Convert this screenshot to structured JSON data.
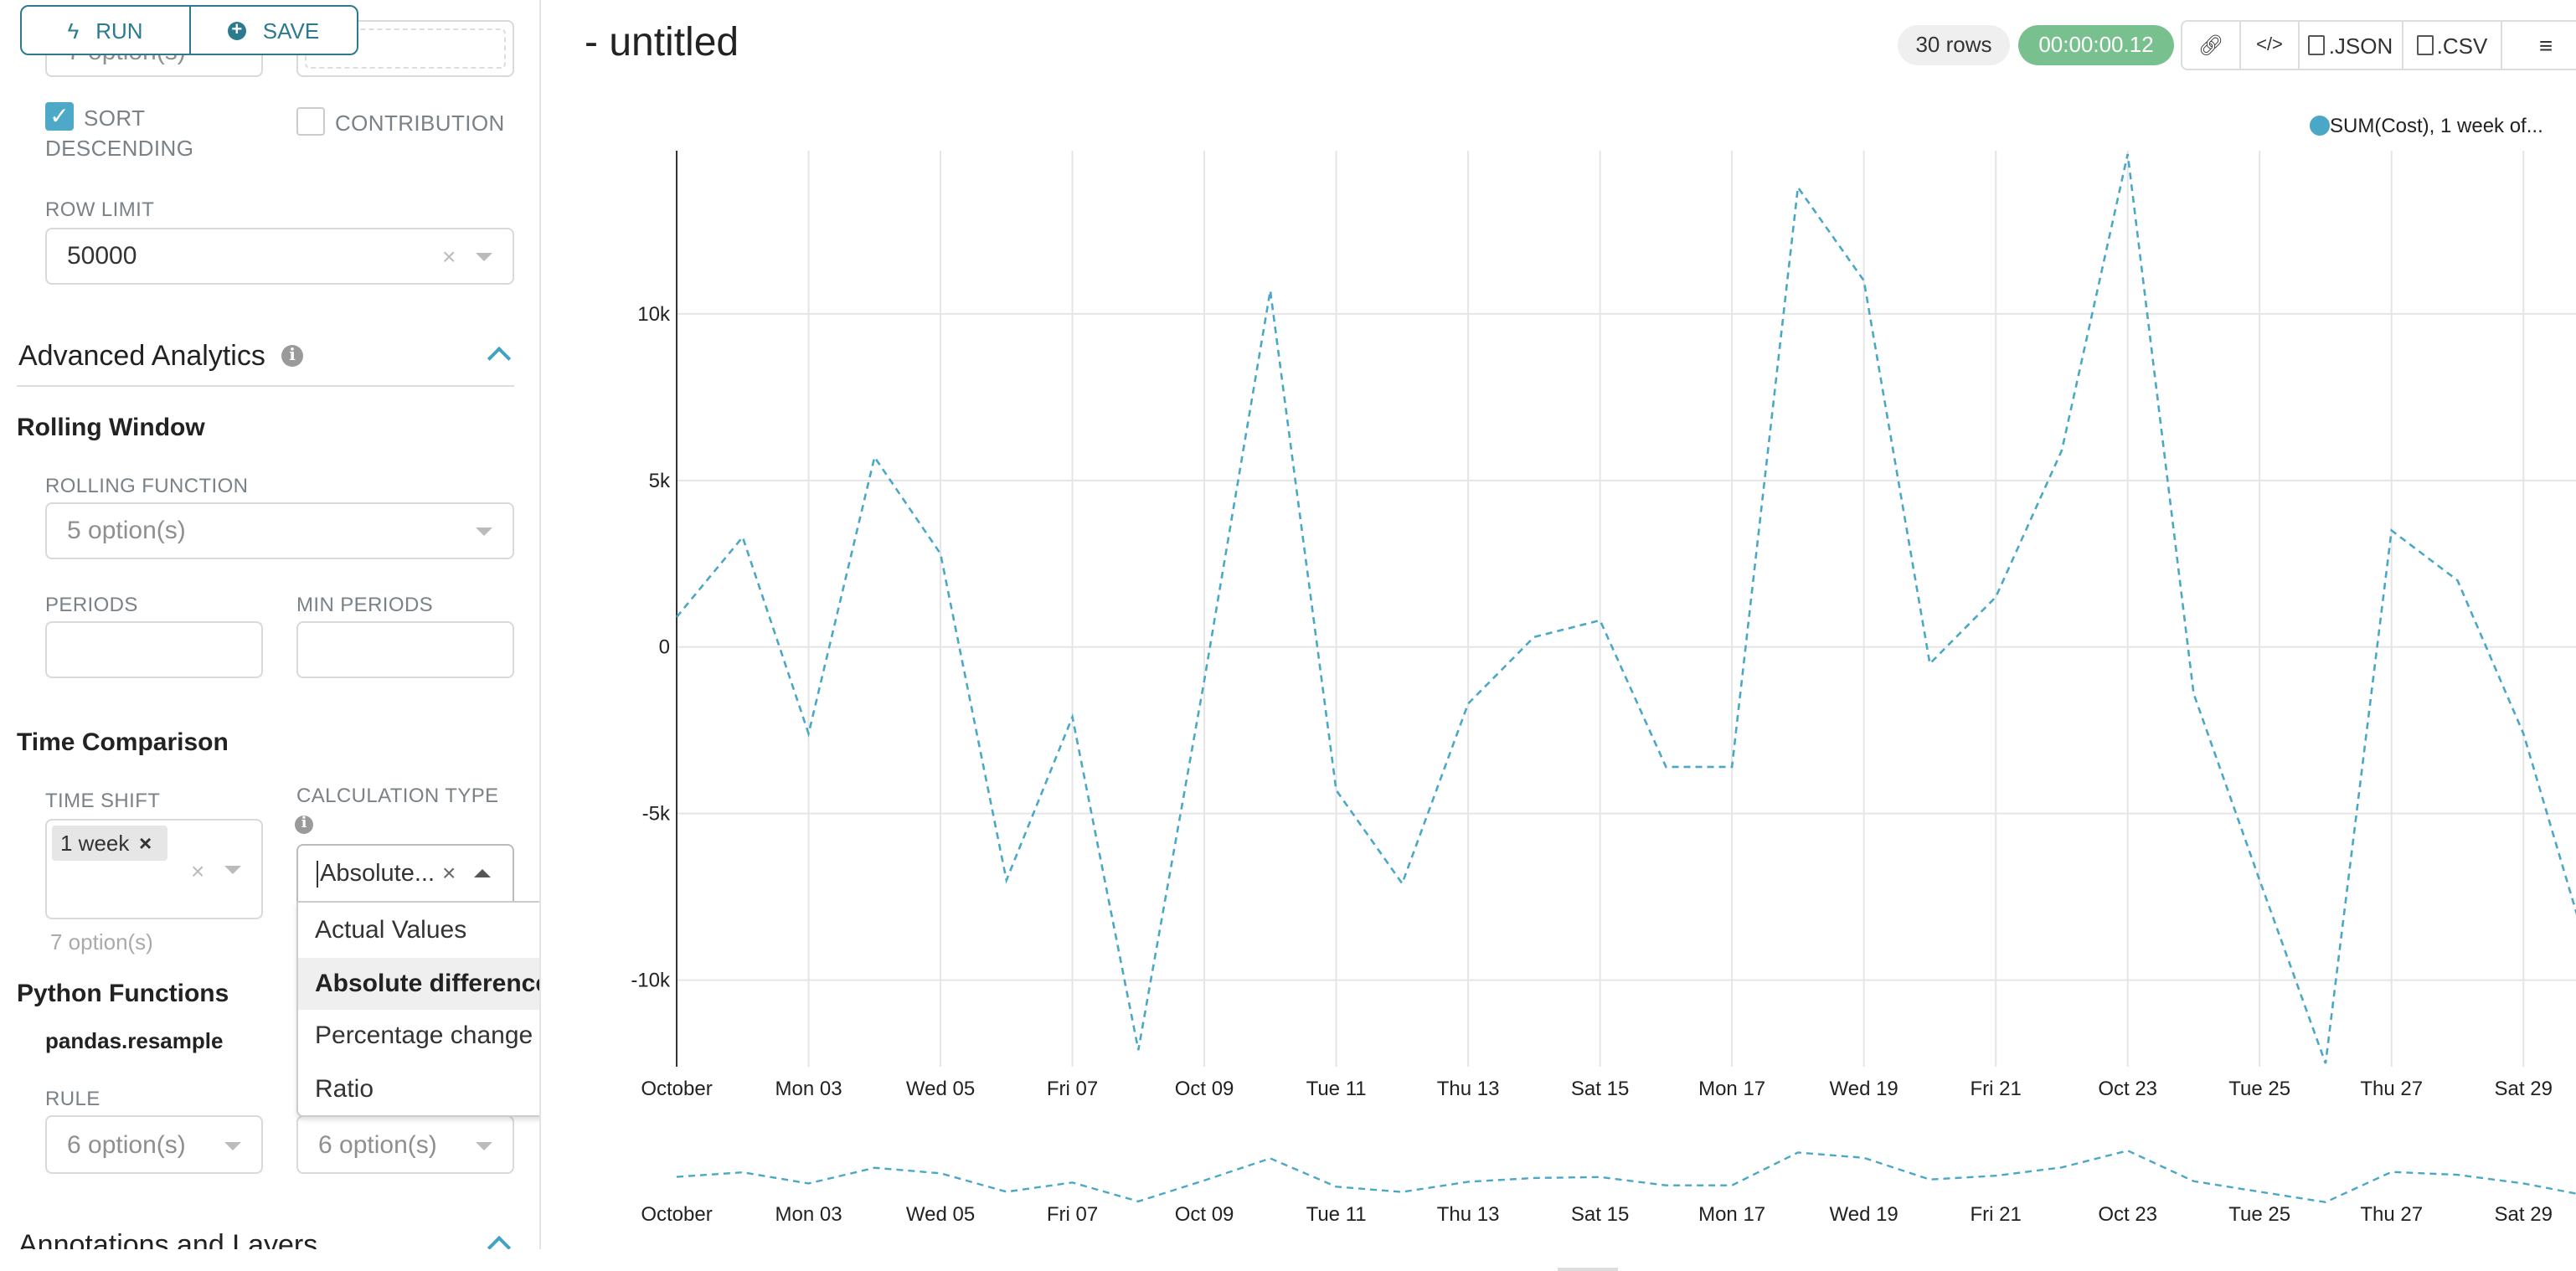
{
  "toolbar": {
    "run_label": "RUN",
    "save_label": "SAVE",
    "run_icon": "bolt-icon",
    "save_icon": "plus-circle-icon"
  },
  "sidebar": {
    "hidden_select_value": "7 option(s)",
    "sort_descending": {
      "label_line1": "SORT",
      "label_line2": "DESCENDING",
      "checked": true
    },
    "contribution": {
      "label": "CONTRIBUTION",
      "checked": false
    },
    "row_limit": {
      "label": "ROW LIMIT",
      "value": "50000"
    },
    "advanced_analytics": {
      "title": "Advanced Analytics"
    },
    "rolling_window": {
      "title": "Rolling Window",
      "rolling_function_label": "ROLLING FUNCTION",
      "rolling_function_placeholder": "5 option(s)",
      "periods_label": "PERIODS",
      "min_periods_label": "MIN PERIODS"
    },
    "time_comparison": {
      "title": "Time Comparison",
      "time_shift_label": "TIME SHIFT",
      "time_shift_tag": "1 week",
      "time_shift_hint": "7 option(s)",
      "calc_type_label": "CALCULATION TYPE",
      "calc_type_value": "Absolute...",
      "calc_type_options": [
        "Actual Values",
        "Absolute difference",
        "Percentage change",
        "Ratio"
      ],
      "calc_type_highlighted": "Absolute difference"
    },
    "python_functions": {
      "title": "Python Functions",
      "resample": "pandas.resample",
      "rule_label": "RULE",
      "rule_placeholder": "6 option(s)",
      "method_placeholder": "6 option(s)"
    },
    "annotations": {
      "title": "Annotations and Layers"
    }
  },
  "header": {
    "title": "- untitled",
    "rows_badge": "30 rows",
    "timer": "00:00:00.12",
    "timer_color": "#79c08f",
    "json_label": ".JSON",
    "csv_label": ".CSV"
  },
  "chart_data": {
    "type": "line",
    "legend": {
      "label": "SUM(Cost), 1 week of...",
      "position": "top-right",
      "color": "#4aa8c6"
    },
    "line_style": "dashed",
    "grid": true,
    "x": [
      "Oct 01",
      "Oct 02",
      "Oct 03",
      "Oct 04",
      "Oct 05",
      "Oct 06",
      "Oct 07",
      "Oct 08",
      "Oct 09",
      "Oct 10",
      "Oct 11",
      "Oct 12",
      "Oct 13",
      "Oct 14",
      "Oct 15",
      "Oct 16",
      "Oct 17",
      "Oct 18",
      "Oct 19",
      "Oct 20",
      "Oct 21",
      "Oct 22",
      "Oct 23",
      "Oct 24",
      "Oct 25",
      "Oct 26",
      "Oct 27",
      "Oct 28",
      "Oct 29",
      "Oct 30"
    ],
    "series": [
      {
        "name": "SUM(Cost), 1 week of...",
        "values": [
          900,
          3300,
          -2600,
          5700,
          2800,
          -7000,
          -2100,
          -12100,
          -1000,
          10700,
          -4300,
          -7100,
          -1700,
          300,
          800,
          -3600,
          -3600,
          13800,
          11000,
          -500,
          1500,
          5900,
          14800,
          -1400,
          -7000,
          -12500,
          3500,
          2000,
          -2600,
          -9300
        ]
      }
    ],
    "ylim": [
      -12600,
      14900
    ],
    "y_ticks": [
      {
        "value": 10000,
        "label": "10k"
      },
      {
        "value": 5000,
        "label": "5k"
      },
      {
        "value": 0,
        "label": "0"
      },
      {
        "value": -5000,
        "label": "-5k"
      },
      {
        "value": -10000,
        "label": "-10k"
      }
    ],
    "x_ticks": [
      {
        "index": 0,
        "label": "October"
      },
      {
        "index": 2,
        "label": "Mon 03"
      },
      {
        "index": 4,
        "label": "Wed 05"
      },
      {
        "index": 6,
        "label": "Fri 07"
      },
      {
        "index": 8,
        "label": "Oct 09"
      },
      {
        "index": 10,
        "label": "Tue 11"
      },
      {
        "index": 12,
        "label": "Thu 13"
      },
      {
        "index": 14,
        "label": "Sat 15"
      },
      {
        "index": 16,
        "label": "Mon 17"
      },
      {
        "index": 18,
        "label": "Wed 19"
      },
      {
        "index": 20,
        "label": "Fri 21"
      },
      {
        "index": 22,
        "label": "Oct 23"
      },
      {
        "index": 24,
        "label": "Tue 25"
      },
      {
        "index": 26,
        "label": "Thu 27"
      },
      {
        "index": 28,
        "label": "Sat 29"
      }
    ]
  }
}
